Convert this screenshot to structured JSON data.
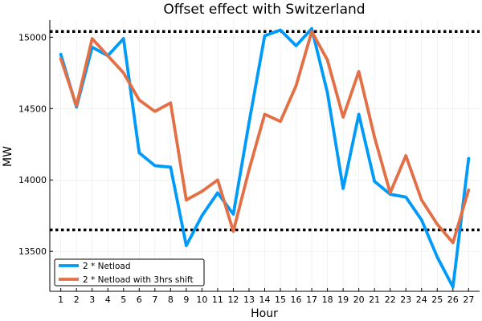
{
  "chart_data": {
    "type": "line",
    "title": "Offset effect with Switzerland",
    "xlabel": "Hour",
    "ylabel": "MW",
    "x": [
      1,
      2,
      3,
      4,
      5,
      6,
      7,
      8,
      9,
      10,
      11,
      12,
      13,
      14,
      15,
      16,
      17,
      18,
      19,
      20,
      21,
      22,
      23,
      24,
      25,
      26,
      27
    ],
    "xlim": [
      0.3,
      27.7
    ],
    "ylim": [
      13220,
      15120
    ],
    "yticks": [
      13500,
      14000,
      14500,
      15000
    ],
    "grid": true,
    "legend_position": "bottom-left",
    "series": [
      {
        "name": "2 * Netload",
        "color": "#009af9",
        "values": [
          14880,
          14510,
          14930,
          14870,
          14990,
          14190,
          14100,
          14090,
          13540,
          13750,
          13910,
          13760,
          14400,
          15010,
          15050,
          14940,
          15060,
          14610,
          13940,
          14460,
          13990,
          13900,
          13880,
          13720,
          13460,
          13250,
          14150
        ]
      },
      {
        "name": "2 * Netload with 3hrs shift",
        "color": "#e26f46",
        "values": [
          14850,
          14520,
          14990,
          14870,
          14750,
          14560,
          14480,
          14540,
          13860,
          13920,
          14000,
          13640,
          14070,
          14460,
          14410,
          14660,
          15040,
          14840,
          14440,
          14760,
          14300,
          13910,
          14170,
          13860,
          13690,
          13560,
          13930
        ]
      }
    ],
    "reference_lines": [
      {
        "y": 15040,
        "style": "dotted",
        "color": "#000000"
      },
      {
        "y": 13650,
        "style": "dotted",
        "color": "#000000"
      }
    ]
  }
}
